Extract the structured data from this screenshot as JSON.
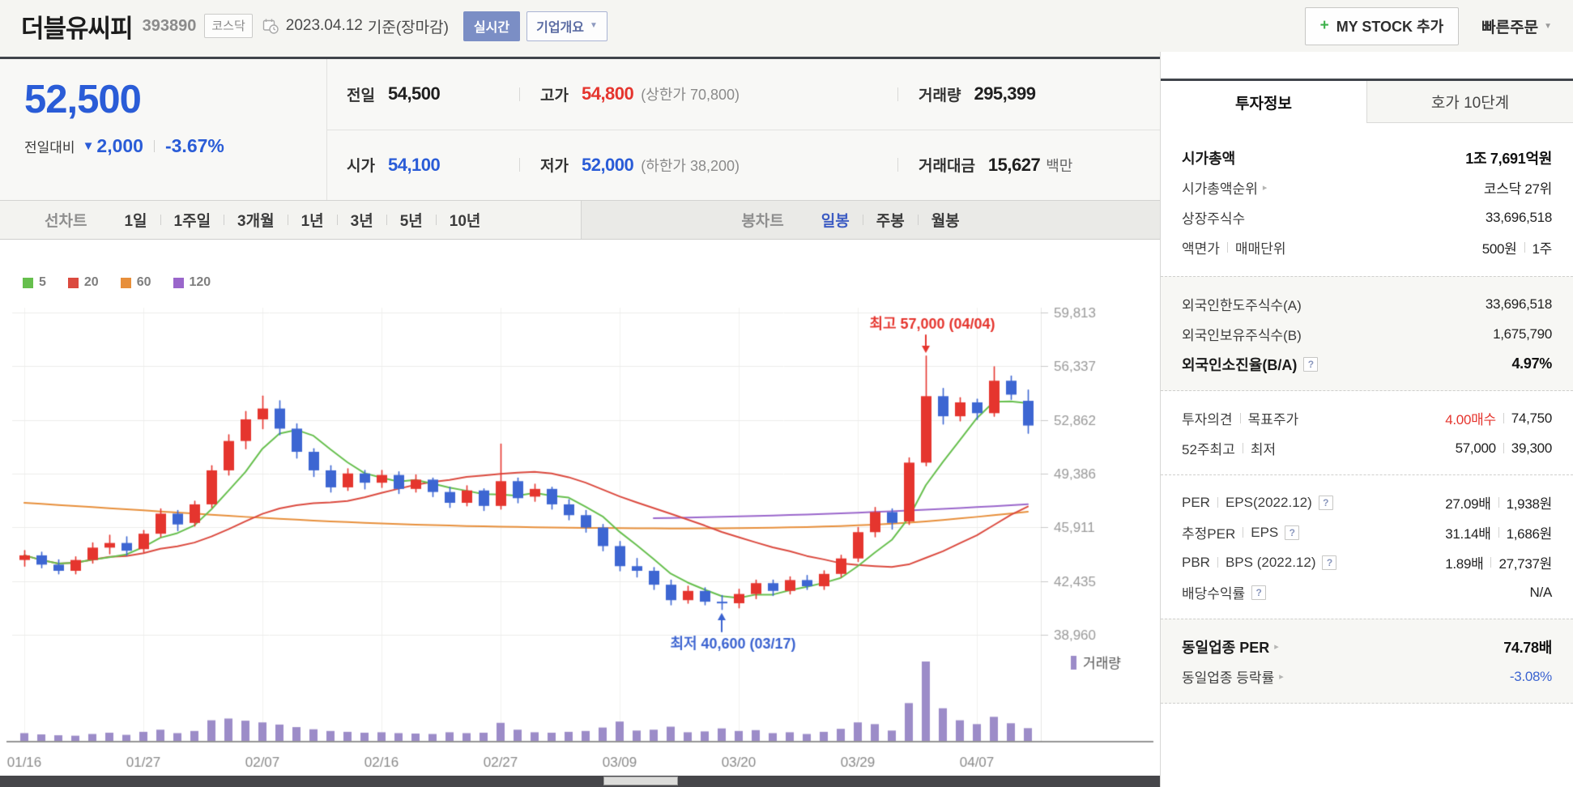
{
  "icons": {
    "down_triangle": "▼",
    "caret_down": "▼",
    "arrow_right": "▸",
    "plus": "+",
    "help": "?"
  },
  "header": {
    "title": "더블유씨피",
    "code": "393890",
    "market_badge": "코스닥",
    "date": "2023.04.12",
    "date_note": "기준(장마감)",
    "realtime_button": "실시간",
    "overview_button": "기업개요",
    "my_stock_button": "MY STOCK 추가",
    "quick_order_button": "빠른주문"
  },
  "summary": {
    "price": "52,500",
    "change_label": "전일대비",
    "change_value": "2,000",
    "change_percent": "-3.67%",
    "prev": {
      "label": "전일",
      "value": "54,500"
    },
    "high": {
      "label": "고가",
      "value": "54,800",
      "limit": "(상한가 70,800)"
    },
    "volume": {
      "label": "거래량",
      "value": "295,399"
    },
    "open": {
      "label": "시가",
      "value": "54,100"
    },
    "low": {
      "label": "저가",
      "value": "52,000",
      "limit": "(하한가 38,200)"
    },
    "trade_value": {
      "label": "거래대금",
      "value": "15,627",
      "unit": "백만"
    }
  },
  "chart_tabs": {
    "line_label": "선차트",
    "line": [
      "1일",
      "1주일",
      "3개월",
      "1년",
      "3년",
      "5년",
      "10년"
    ],
    "candle_label": "봉차트",
    "candle": [
      "일봉",
      "주봉",
      "월봉"
    ],
    "active": "일봉"
  },
  "chart_data": {
    "type": "candlestick",
    "title": "더블유씨피 일봉 차트",
    "ma_legend": [
      {
        "label": "5",
        "color": "#66bf4d"
      },
      {
        "label": "20",
        "color": "#db4a3f"
      },
      {
        "label": "60",
        "color": "#e78f3b"
      },
      {
        "label": "120",
        "color": "#9a66cb"
      }
    ],
    "y_ticks": [
      {
        "value": 59813,
        "label": "59,813"
      },
      {
        "value": 56337,
        "label": "56,337"
      },
      {
        "value": 52862,
        "label": "52,862"
      },
      {
        "value": 49386,
        "label": "49,386"
      },
      {
        "value": 45911,
        "label": "45,911"
      },
      {
        "value": 42435,
        "label": "42,435"
      },
      {
        "value": 38960,
        "label": "38,960"
      }
    ],
    "x_ticks": [
      "01/16",
      "01/27",
      "02/07",
      "02/16",
      "02/27",
      "03/09",
      "03/20",
      "03/29",
      "04/07"
    ],
    "x_tick_every": 7,
    "dates": [
      "01/16",
      "01/17",
      "01/18",
      "01/19",
      "01/20",
      "01/25",
      "01/26",
      "01/27",
      "01/30",
      "01/31",
      "02/01",
      "02/02",
      "02/03",
      "02/06",
      "02/07",
      "02/08",
      "02/09",
      "02/10",
      "02/13",
      "02/14",
      "02/15",
      "02/16",
      "02/17",
      "02/20",
      "02/21",
      "02/22",
      "02/23",
      "02/24",
      "02/27",
      "02/28",
      "03/02",
      "03/03",
      "03/06",
      "03/07",
      "03/08",
      "03/09",
      "03/10",
      "03/13",
      "03/14",
      "03/15",
      "03/16",
      "03/17",
      "03/20",
      "03/21",
      "03/22",
      "03/23",
      "03/24",
      "03/27",
      "03/28",
      "03/29",
      "03/30",
      "03/31",
      "04/03",
      "04/04",
      "04/05",
      "04/06",
      "04/07",
      "04/10",
      "04/11",
      "04/12"
    ],
    "ohlc": [
      [
        43800,
        44400,
        43400,
        44100
      ],
      [
        44100,
        44300,
        43300,
        43500
      ],
      [
        43500,
        43800,
        42900,
        43100
      ],
      [
        43100,
        44000,
        42900,
        43800
      ],
      [
        43800,
        44900,
        43600,
        44600
      ],
      [
        44600,
        45400,
        44200,
        44900
      ],
      [
        44900,
        45300,
        44100,
        44400
      ],
      [
        44500,
        45700,
        44300,
        45500
      ],
      [
        45500,
        47100,
        45300,
        46800
      ],
      [
        46800,
        47000,
        45700,
        46100
      ],
      [
        46200,
        47600,
        46000,
        47400
      ],
      [
        47400,
        49900,
        47200,
        49600
      ],
      [
        49600,
        51900,
        49300,
        51500
      ],
      [
        51500,
        53400,
        51000,
        52900
      ],
      [
        52900,
        54400,
        52300,
        53600
      ],
      [
        53600,
        54100,
        51900,
        52300
      ],
      [
        52300,
        52600,
        50400,
        50800
      ],
      [
        50800,
        51000,
        49200,
        49600
      ],
      [
        49600,
        49900,
        48200,
        48500
      ],
      [
        48500,
        49700,
        48300,
        49400
      ],
      [
        49400,
        49600,
        48400,
        48800
      ],
      [
        48800,
        49600,
        48500,
        49300
      ],
      [
        49300,
        49500,
        48100,
        48400
      ],
      [
        48400,
        49300,
        48200,
        49000
      ],
      [
        49000,
        49100,
        47900,
        48200
      ],
      [
        48200,
        48500,
        47200,
        47500
      ],
      [
        47500,
        48600,
        47300,
        48300
      ],
      [
        48300,
        48400,
        47000,
        47300
      ],
      [
        47300,
        51300,
        47100,
        48900
      ],
      [
        48900,
        49100,
        47500,
        47800
      ],
      [
        47900,
        48700,
        47600,
        48400
      ],
      [
        48400,
        48500,
        47100,
        47400
      ],
      [
        47400,
        47700,
        46400,
        46700
      ],
      [
        46700,
        47000,
        45600,
        45900
      ],
      [
        45900,
        46100,
        44400,
        44700
      ],
      [
        44700,
        45000,
        43100,
        43400
      ],
      [
        43400,
        43900,
        42700,
        43100
      ],
      [
        43100,
        43300,
        41900,
        42200
      ],
      [
        42200,
        42500,
        40900,
        41200
      ],
      [
        41200,
        42100,
        41000,
        41800
      ],
      [
        41800,
        42000,
        40900,
        41100
      ],
      [
        41100,
        41500,
        40600,
        41000
      ],
      [
        41000,
        41900,
        40700,
        41600
      ],
      [
        41600,
        42500,
        41300,
        42300
      ],
      [
        42300,
        42500,
        41500,
        41800
      ],
      [
        41800,
        42700,
        41600,
        42500
      ],
      [
        42500,
        42800,
        41900,
        42100
      ],
      [
        42100,
        43100,
        41900,
        42900
      ],
      [
        42900,
        44100,
        42700,
        43900
      ],
      [
        43900,
        45900,
        43700,
        45600
      ],
      [
        45600,
        47200,
        45300,
        46900
      ],
      [
        46900,
        47100,
        45800,
        46200
      ],
      [
        46300,
        50400,
        46100,
        50100
      ],
      [
        50100,
        57000,
        49900,
        54400
      ],
      [
        54400,
        54900,
        52600,
        53100
      ],
      [
        53100,
        54300,
        52800,
        54000
      ],
      [
        54000,
        54200,
        52900,
        53300
      ],
      [
        53300,
        56300,
        53100,
        55400
      ],
      [
        55400,
        55700,
        54200,
        54500
      ],
      [
        54100,
        54800,
        52000,
        52500
      ]
    ],
    "volume": [
      180000,
      150000,
      130000,
      120000,
      160000,
      190000,
      140000,
      210000,
      260000,
      180000,
      230000,
      480000,
      520000,
      470000,
      430000,
      380000,
      320000,
      270000,
      230000,
      210000,
      190000,
      200000,
      180000,
      170000,
      160000,
      200000,
      180000,
      190000,
      420000,
      260000,
      200000,
      190000,
      210000,
      230000,
      310000,
      450000,
      240000,
      260000,
      330000,
      200000,
      220000,
      290000,
      230000,
      250000,
      180000,
      200000,
      160000,
      210000,
      280000,
      430000,
      390000,
      240000,
      880000,
      1850000,
      760000,
      480000,
      390000,
      560000,
      410000,
      295399
    ],
    "ma60": [
      47500,
      47430,
      47360,
      47290,
      47220,
      47150,
      47080,
      47010,
      46940,
      46870,
      46800,
      46730,
      46660,
      46590,
      46530,
      46470,
      46410,
      46350,
      46300,
      46250,
      46210,
      46170,
      46130,
      46090,
      46060,
      46030,
      46000,
      45980,
      45960,
      45940,
      45920,
      45900,
      45890,
      45880,
      45870,
      45860,
      45850,
      45845,
      45840,
      45840,
      45845,
      45850,
      45860,
      45875,
      45890,
      45910,
      45935,
      45965,
      46000,
      46040,
      46090,
      46150,
      46220,
      46300,
      46390,
      46490,
      46590,
      46700,
      46810,
      46920
    ],
    "ma120": [
      null,
      null,
      null,
      null,
      null,
      null,
      null,
      null,
      null,
      null,
      null,
      null,
      null,
      null,
      null,
      null,
      null,
      null,
      null,
      null,
      null,
      null,
      null,
      null,
      null,
      null,
      null,
      null,
      null,
      null,
      null,
      null,
      null,
      null,
      null,
      null,
      null,
      46500,
      46520,
      46545,
      46570,
      46595,
      46620,
      46650,
      46680,
      46710,
      46745,
      46780,
      46820,
      46860,
      46905,
      46950,
      47000,
      47050,
      47105,
      47160,
      47220,
      47280,
      47345,
      47410
    ],
    "annotations": [
      {
        "type": "high",
        "label": "최고 57,000 (04/04)",
        "index": 53,
        "value": 57000,
        "dir": "down",
        "color": "#e5352e"
      },
      {
        "type": "low",
        "label": "최저 40,600 (03/17)",
        "index": 41,
        "value": 40600,
        "dir": "up",
        "color": "#3b63d0"
      }
    ],
    "volume_legend": "거래량",
    "colors": {
      "up": "#e5352e",
      "down": "#3d66d2",
      "volume": "#9c8cc8",
      "grid": "#ededeb",
      "vgrid": "#f1f1ef",
      "axis_text": "#9a9a9a",
      "axis_line": "#949494",
      "tick": "#c9c9c9"
    }
  },
  "sidebar": {
    "tabs": [
      {
        "label": "투자정보"
      },
      {
        "label": "호가 10단계"
      }
    ],
    "market_cap": {
      "label": "시가총액",
      "value": "1조 7,691억원"
    },
    "rank": {
      "label": "시가총액순위",
      "value": "코스닥 27위"
    },
    "shares": {
      "label": "상장주식수",
      "value": "33,696,518"
    },
    "par": {
      "label": "액면가",
      "label2": "매매단위",
      "value": "500원",
      "value2": "1주"
    },
    "foreign_limit": {
      "label": "외국인한도주식수(A)",
      "value": "33,696,518"
    },
    "foreign_held": {
      "label": "외국인보유주식수(B)",
      "value": "1,675,790"
    },
    "foreign_ratio": {
      "label": "외국인소진율(B/A)",
      "value": "4.97%"
    },
    "opinion": {
      "label": "투자의견",
      "label2": "목표주가",
      "value": "4.00매수",
      "value2": "74,750"
    },
    "week52": {
      "label": "52주최고",
      "label2": "최저",
      "value": "57,000",
      "value2": "39,300"
    },
    "per_eps": {
      "label": "PER",
      "label2": "EPS(2022.12)",
      "value": "27.09배",
      "value2": "1,938원"
    },
    "est_per": {
      "label": "추정PER",
      "label2": "EPS",
      "value": "31.14배",
      "value2": "1,686원"
    },
    "pbr_bps": {
      "label": "PBR",
      "label2": "BPS (2022.12)",
      "value": "1.89배",
      "value2": "27,737원"
    },
    "dividend": {
      "label": "배당수익률",
      "value": "N/A"
    },
    "industry_per": {
      "label": "동일업종 PER",
      "value": "74.78배"
    },
    "industry_change": {
      "label": "동일업종 등락률",
      "value": "-3.08%"
    }
  }
}
